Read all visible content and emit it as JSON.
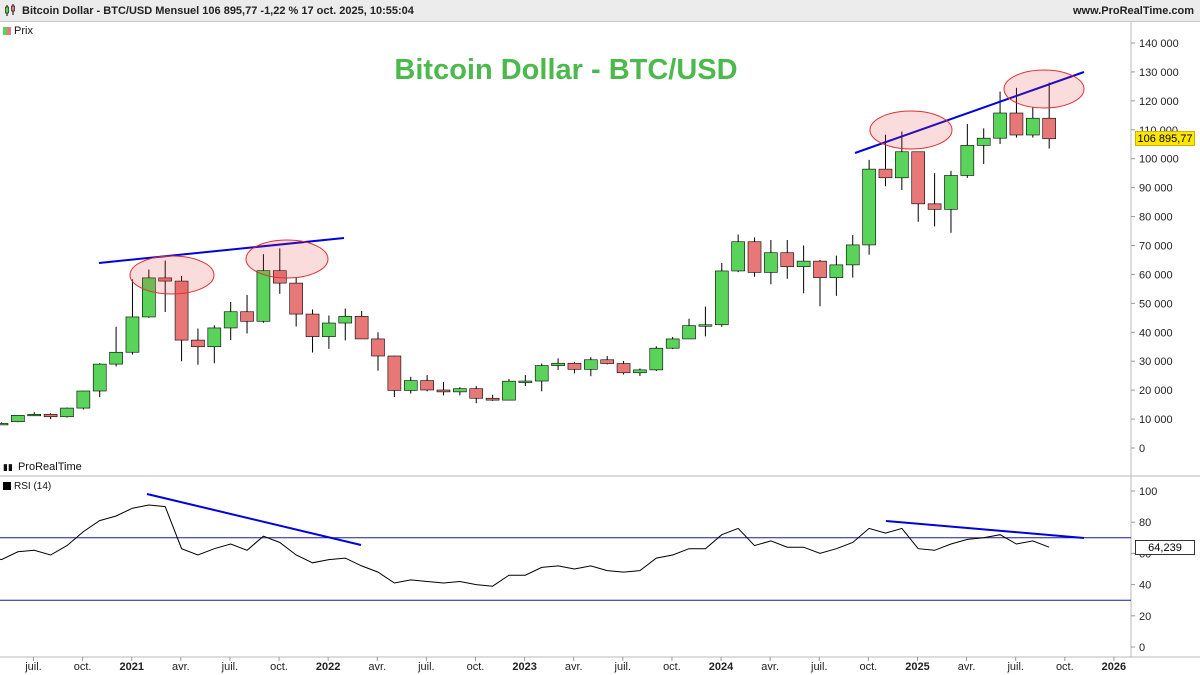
{
  "header": {
    "title": "Bitcoin Dollar - BTC/USD Mensuel 106 895,77 -1,22 % 17 oct. 2025, 10:55:04",
    "website": "www.ProRealTime.com"
  },
  "price_panel": {
    "legend": "Prix",
    "chart_title": "Bitcoin Dollar - BTC/USD",
    "last_price_label": "106 895,77",
    "y_ticks": [
      "0",
      "10 000",
      "20 000",
      "30 000",
      "40 000",
      "50 000",
      "60 000",
      "70 000",
      "80 000",
      "90 000",
      "100 000",
      "110 000",
      "120 000",
      "130 000",
      "140 000"
    ]
  },
  "rsi_panel": {
    "brand": "ProRealTime",
    "legend": "RSI (14)",
    "last_value_label": "64,239",
    "y_ticks": [
      "0",
      "20",
      "40",
      "60",
      "80",
      "100"
    ]
  },
  "x_axis": {
    "labels": [
      "juil.",
      "oct.",
      "2021",
      "avr.",
      "juil.",
      "oct.",
      "2022",
      "avr.",
      "juil.",
      "oct.",
      "2023",
      "avr.",
      "juil.",
      "oct.",
      "2024",
      "avr.",
      "juil.",
      "oct.",
      "2025",
      "avr.",
      "juil.",
      "oct.",
      "2026"
    ]
  },
  "colors": {
    "up": "#5ad35a",
    "down": "#e87777",
    "trendline": "#0000dd",
    "highlight": "#e03030",
    "title_green": "#4cb94c",
    "rsi_line": "#000000",
    "rsi_levels": "#1a1a99"
  },
  "chart_data": [
    {
      "type": "candlestick",
      "title": "Bitcoin Dollar - BTC/USD",
      "timeframe": "Mensuel",
      "ylim": [
        0,
        140000
      ],
      "x_range": [
        "2020-06",
        "2026-01"
      ],
      "candles": [
        {
          "t": "2020-06",
          "o": 8400,
          "h": 8800,
          "l": 8300,
          "c": 8500
        },
        {
          "t": "2020-07",
          "o": 9100,
          "h": 11400,
          "l": 8900,
          "c": 11300
        },
        {
          "t": "2020-08",
          "o": 11300,
          "h": 12400,
          "l": 11100,
          "c": 11650
        },
        {
          "t": "2020-09",
          "o": 11650,
          "h": 12000,
          "l": 10000,
          "c": 10800
        },
        {
          "t": "2020-10",
          "o": 10800,
          "h": 14000,
          "l": 10500,
          "c": 13800
        },
        {
          "t": "2020-11",
          "o": 13800,
          "h": 19800,
          "l": 13300,
          "c": 19700
        },
        {
          "t": "2020-12",
          "o": 19700,
          "h": 29300,
          "l": 17600,
          "c": 29000
        },
        {
          "t": "2021-01",
          "o": 29000,
          "h": 41900,
          "l": 28200,
          "c": 33100
        },
        {
          "t": "2021-02",
          "o": 33100,
          "h": 58300,
          "l": 32300,
          "c": 45300
        },
        {
          "t": "2021-03",
          "o": 45300,
          "h": 61700,
          "l": 45000,
          "c": 58800
        },
        {
          "t": "2021-04",
          "o": 58800,
          "h": 64800,
          "l": 47000,
          "c": 57700
        },
        {
          "t": "2021-05",
          "o": 57700,
          "h": 59500,
          "l": 30000,
          "c": 37300
        },
        {
          "t": "2021-06",
          "o": 37300,
          "h": 41300,
          "l": 28800,
          "c": 35000
        },
        {
          "t": "2021-07",
          "o": 35000,
          "h": 42400,
          "l": 29300,
          "c": 41500
        },
        {
          "t": "2021-08",
          "o": 41500,
          "h": 50500,
          "l": 37300,
          "c": 47100
        },
        {
          "t": "2021-09",
          "o": 47100,
          "h": 52900,
          "l": 39600,
          "c": 43800
        },
        {
          "t": "2021-10",
          "o": 43800,
          "h": 67000,
          "l": 43300,
          "c": 61300
        },
        {
          "t": "2021-11",
          "o": 61300,
          "h": 69000,
          "l": 53300,
          "c": 57000
        },
        {
          "t": "2021-12",
          "o": 57000,
          "h": 59100,
          "l": 42000,
          "c": 46300
        },
        {
          "t": "2022-01",
          "o": 46300,
          "h": 47900,
          "l": 33000,
          "c": 38500
        },
        {
          "t": "2022-02",
          "o": 38500,
          "h": 45800,
          "l": 34300,
          "c": 43200
        },
        {
          "t": "2022-03",
          "o": 43200,
          "h": 48200,
          "l": 37200,
          "c": 45500
        },
        {
          "t": "2022-04",
          "o": 45500,
          "h": 47400,
          "l": 37700,
          "c": 37700
        },
        {
          "t": "2022-05",
          "o": 37700,
          "h": 40000,
          "l": 26700,
          "c": 31800
        },
        {
          "t": "2022-06",
          "o": 31800,
          "h": 31900,
          "l": 17600,
          "c": 19900
        },
        {
          "t": "2022-07",
          "o": 19900,
          "h": 24600,
          "l": 18800,
          "c": 23300
        },
        {
          "t": "2022-08",
          "o": 23300,
          "h": 25200,
          "l": 19600,
          "c": 20050
        },
        {
          "t": "2022-09",
          "o": 20050,
          "h": 22800,
          "l": 18200,
          "c": 19400
        },
        {
          "t": "2022-10",
          "o": 19400,
          "h": 21000,
          "l": 18200,
          "c": 20500
        },
        {
          "t": "2022-11",
          "o": 20500,
          "h": 21400,
          "l": 15500,
          "c": 17200
        },
        {
          "t": "2022-12",
          "o": 17200,
          "h": 18400,
          "l": 16300,
          "c": 16550
        },
        {
          "t": "2023-01",
          "o": 16550,
          "h": 23900,
          "l": 16500,
          "c": 23100
        },
        {
          "t": "2023-02",
          "o": 23100,
          "h": 25200,
          "l": 21400,
          "c": 23150
        },
        {
          "t": "2023-03",
          "o": 23150,
          "h": 29200,
          "l": 19600,
          "c": 28500
        },
        {
          "t": "2023-04",
          "o": 28500,
          "h": 31000,
          "l": 27000,
          "c": 29300
        },
        {
          "t": "2023-05",
          "o": 29300,
          "h": 29800,
          "l": 25800,
          "c": 27200
        },
        {
          "t": "2023-06",
          "o": 27200,
          "h": 31400,
          "l": 24800,
          "c": 30500
        },
        {
          "t": "2023-07",
          "o": 30500,
          "h": 31800,
          "l": 28900,
          "c": 29200
        },
        {
          "t": "2023-08",
          "o": 29200,
          "h": 30100,
          "l": 25400,
          "c": 26000
        },
        {
          "t": "2023-09",
          "o": 26000,
          "h": 27500,
          "l": 24900,
          "c": 27000
        },
        {
          "t": "2023-10",
          "o": 27000,
          "h": 35200,
          "l": 26600,
          "c": 34500
        },
        {
          "t": "2023-11",
          "o": 34500,
          "h": 38400,
          "l": 34200,
          "c": 37700
        },
        {
          "t": "2023-12",
          "o": 37700,
          "h": 44700,
          "l": 37700,
          "c": 42300
        },
        {
          "t": "2024-01",
          "o": 42300,
          "h": 48900,
          "l": 38600,
          "c": 42600
        },
        {
          "t": "2024-02",
          "o": 42600,
          "h": 64000,
          "l": 41900,
          "c": 61200
        },
        {
          "t": "2024-03",
          "o": 61200,
          "h": 73800,
          "l": 60800,
          "c": 71300
        },
        {
          "t": "2024-04",
          "o": 71300,
          "h": 72800,
          "l": 59200,
          "c": 60700
        },
        {
          "t": "2024-05",
          "o": 60700,
          "h": 71900,
          "l": 56600,
          "c": 67500
        },
        {
          "t": "2024-06",
          "o": 67500,
          "h": 71900,
          "l": 58500,
          "c": 62700
        },
        {
          "t": "2024-07",
          "o": 62700,
          "h": 70000,
          "l": 53500,
          "c": 64600
        },
        {
          "t": "2024-08",
          "o": 64600,
          "h": 65000,
          "l": 49000,
          "c": 58900
        },
        {
          "t": "2024-09",
          "o": 58900,
          "h": 66500,
          "l": 52600,
          "c": 63300
        },
        {
          "t": "2024-10",
          "o": 63300,
          "h": 73600,
          "l": 58900,
          "c": 70200
        },
        {
          "t": "2024-11",
          "o": 70200,
          "h": 99600,
          "l": 66800,
          "c": 96400
        },
        {
          "t": "2024-12",
          "o": 96400,
          "h": 108300,
          "l": 90500,
          "c": 93400
        },
        {
          "t": "2025-01",
          "o": 93400,
          "h": 109400,
          "l": 89200,
          "c": 102400
        },
        {
          "t": "2025-02",
          "o": 102400,
          "h": 102500,
          "l": 78200,
          "c": 84400
        },
        {
          "t": "2025-03",
          "o": 84400,
          "h": 95000,
          "l": 76600,
          "c": 82500
        },
        {
          "t": "2025-04",
          "o": 82500,
          "h": 95800,
          "l": 74400,
          "c": 94200
        },
        {
          "t": "2025-05",
          "o": 94200,
          "h": 112000,
          "l": 93400,
          "c": 104600
        },
        {
          "t": "2025-06",
          "o": 104600,
          "h": 110500,
          "l": 98200,
          "c": 107100
        },
        {
          "t": "2025-07",
          "o": 107100,
          "h": 123200,
          "l": 105100,
          "c": 115800
        },
        {
          "t": "2025-08",
          "o": 115800,
          "h": 124500,
          "l": 107300,
          "c": 108200
        },
        {
          "t": "2025-09",
          "o": 108200,
          "h": 117900,
          "l": 107300,
          "c": 114000
        },
        {
          "t": "2025-10",
          "o": 114000,
          "h": 126300,
          "l": 103500,
          "c": 106896
        }
      ]
    },
    {
      "type": "line",
      "name": "RSI (14)",
      "ylim": [
        0,
        100
      ],
      "levels": [
        70,
        30
      ],
      "x": [
        "2020-06",
        "2020-07",
        "2020-08",
        "2020-09",
        "2020-10",
        "2020-11",
        "2020-12",
        "2021-01",
        "2021-02",
        "2021-03",
        "2021-04",
        "2021-05",
        "2021-06",
        "2021-07",
        "2021-08",
        "2021-09",
        "2021-10",
        "2021-11",
        "2021-12",
        "2022-01",
        "2022-02",
        "2022-03",
        "2022-04",
        "2022-05",
        "2022-06",
        "2022-07",
        "2022-08",
        "2022-09",
        "2022-10",
        "2022-11",
        "2022-12",
        "2023-01",
        "2023-02",
        "2023-03",
        "2023-04",
        "2023-05",
        "2023-06",
        "2023-07",
        "2023-08",
        "2023-09",
        "2023-10",
        "2023-11",
        "2023-12",
        "2024-01",
        "2024-02",
        "2024-03",
        "2024-04",
        "2024-05",
        "2024-06",
        "2024-07",
        "2024-08",
        "2024-09",
        "2024-10",
        "2024-11",
        "2024-12",
        "2025-01",
        "2025-02",
        "2025-03",
        "2025-04",
        "2025-05",
        "2025-06",
        "2025-07",
        "2025-08",
        "2025-09",
        "2025-10"
      ],
      "values": [
        56,
        61,
        62,
        59,
        65,
        74,
        81,
        84,
        89,
        91,
        90,
        63,
        59,
        63,
        66,
        62,
        71,
        67,
        59,
        54,
        56,
        57,
        52,
        48,
        41,
        43,
        42,
        41,
        42,
        40,
        39,
        46,
        46,
        51,
        52,
        50,
        52,
        49,
        48,
        49,
        57,
        59,
        63,
        63,
        72,
        76,
        65,
        68,
        64,
        64,
        60,
        63,
        67,
        76,
        73,
        76,
        63,
        62,
        66,
        69,
        70,
        72,
        66,
        68,
        64
      ]
    }
  ]
}
